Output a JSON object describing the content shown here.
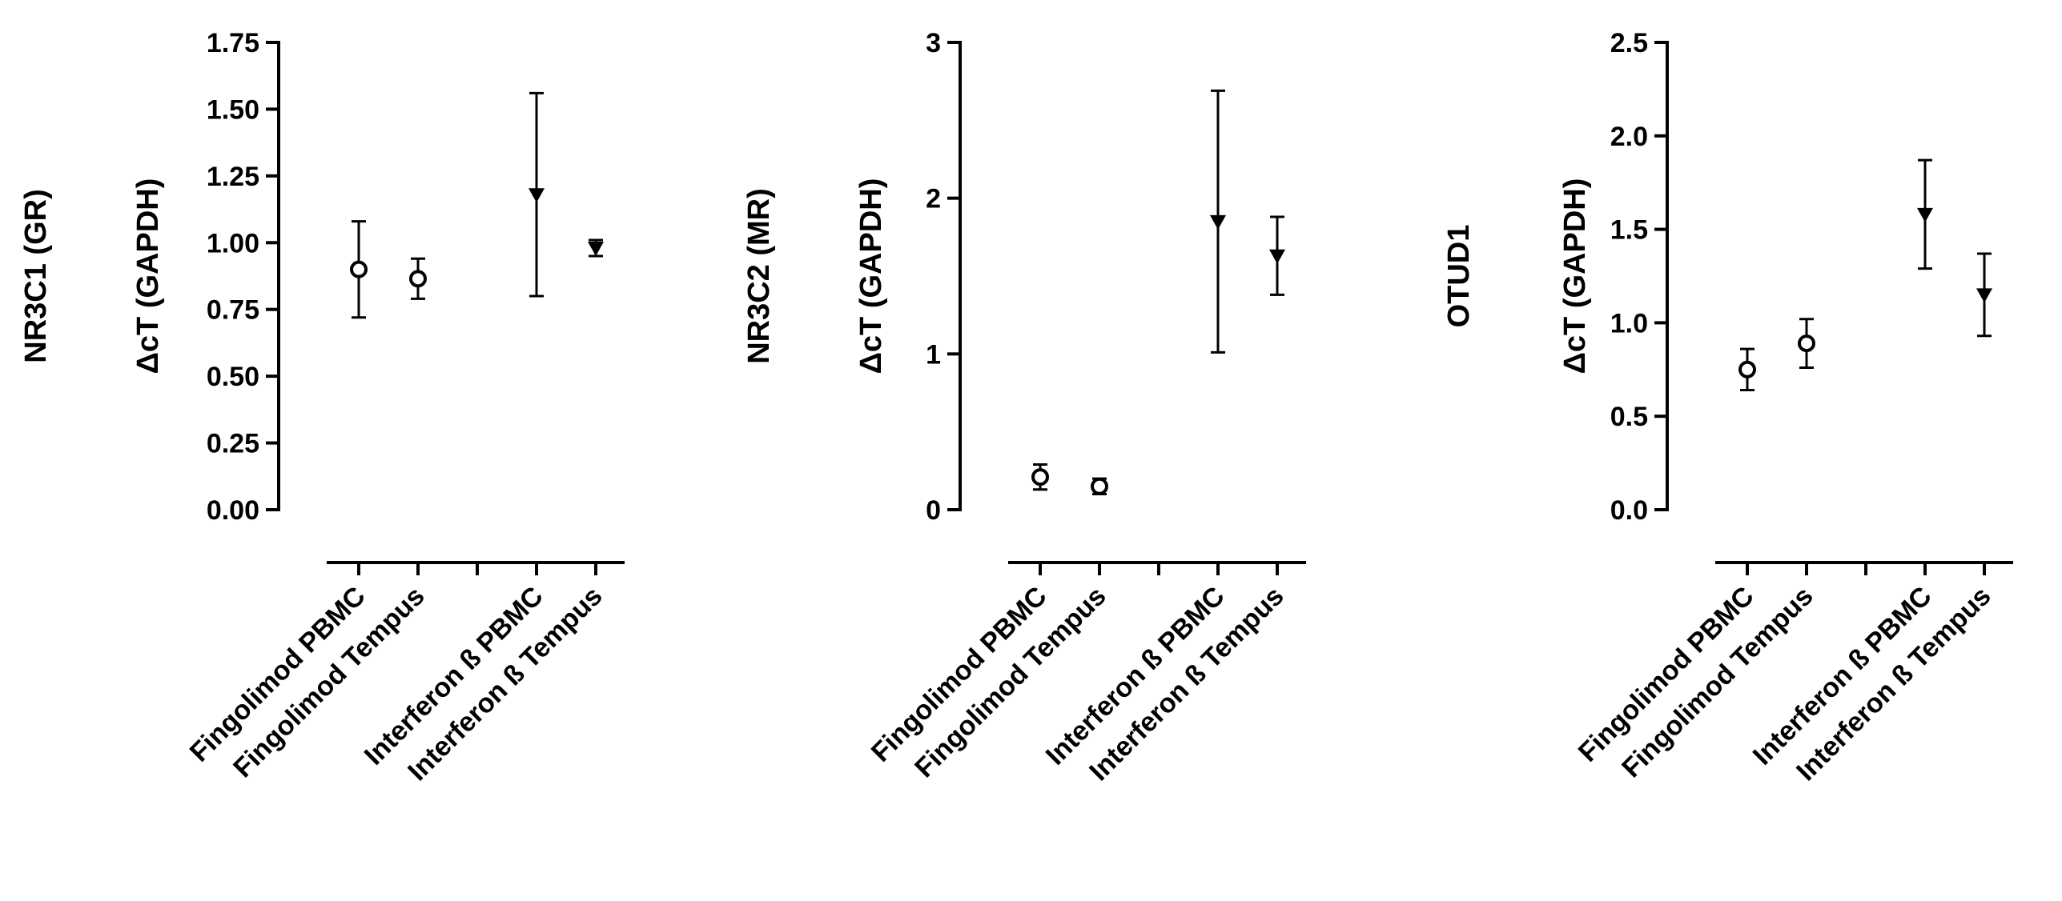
{
  "chart_data": [
    {
      "type": "errorbar",
      "ylabel": [
        "NR3C1 (GR)",
        "ΔcT (GAPDH)"
      ],
      "categories": [
        "Fingolimod PBMC",
        "Fingolimod Tempus",
        null,
        "Interferon ß PBMC",
        "Interferon ß Tempus"
      ],
      "values": [
        0.9,
        0.865,
        null,
        1.18,
        0.98
      ],
      "errors": [
        0.18,
        0.075,
        null,
        0.38,
        0.03
      ],
      "markers": [
        "circle",
        "circle",
        null,
        "triangle-down",
        "triangle-down"
      ],
      "color": "#000000",
      "ylim": [
        0,
        1.75
      ],
      "yticks": [
        {
          "value": 0,
          "label": "0.00"
        },
        0.25,
        {
          "value": 0.5,
          "label": "0.50"
        },
        0.75,
        {
          "value": 1,
          "label": "1.00"
        },
        1.25,
        {
          "value": 1.5,
          "label": "1.50"
        },
        1.75
      ]
    },
    {
      "type": "errorbar",
      "ylabel": [
        "NR3C2 (MR)",
        "ΔcT (GAPDH)"
      ],
      "categories": [
        "Fingolimod PBMC",
        "Fingolimod Tempus",
        null,
        "Interferon ß PBMC",
        "Interferon ß Tempus"
      ],
      "values": [
        0.21,
        0.15,
        null,
        1.85,
        1.63
      ],
      "errors": [
        0.08,
        0.05,
        null,
        0.84,
        0.25
      ],
      "markers": [
        "circle",
        "circle",
        null,
        "triangle-down",
        "triangle-down"
      ],
      "color": "#000000",
      "ylim": [
        0,
        3
      ],
      "yticks": [
        0,
        1,
        2,
        3
      ]
    },
    {
      "type": "errorbar",
      "ylabel": [
        "OTUD1",
        "ΔcT (GAPDH)"
      ],
      "categories": [
        "Fingolimod PBMC",
        "Fingolimod Tempus",
        null,
        "Interferon ß PBMC",
        "Interferon ß Tempus"
      ],
      "values": [
        0.75,
        0.89,
        null,
        1.58,
        1.15
      ],
      "errors": [
        0.11,
        0.13,
        null,
        0.29,
        0.22
      ],
      "markers": [
        "circle",
        "circle",
        null,
        "triangle-down",
        "triangle-down"
      ],
      "color": "#000000",
      "ylim": [
        0,
        2.5
      ],
      "yticks": [
        {
          "value": 0,
          "label": "0.0"
        },
        0.5,
        {
          "value": 1,
          "label": "1.0"
        },
        1.5,
        {
          "value": 2,
          "label": "2.0"
        },
        2.5
      ]
    }
  ]
}
